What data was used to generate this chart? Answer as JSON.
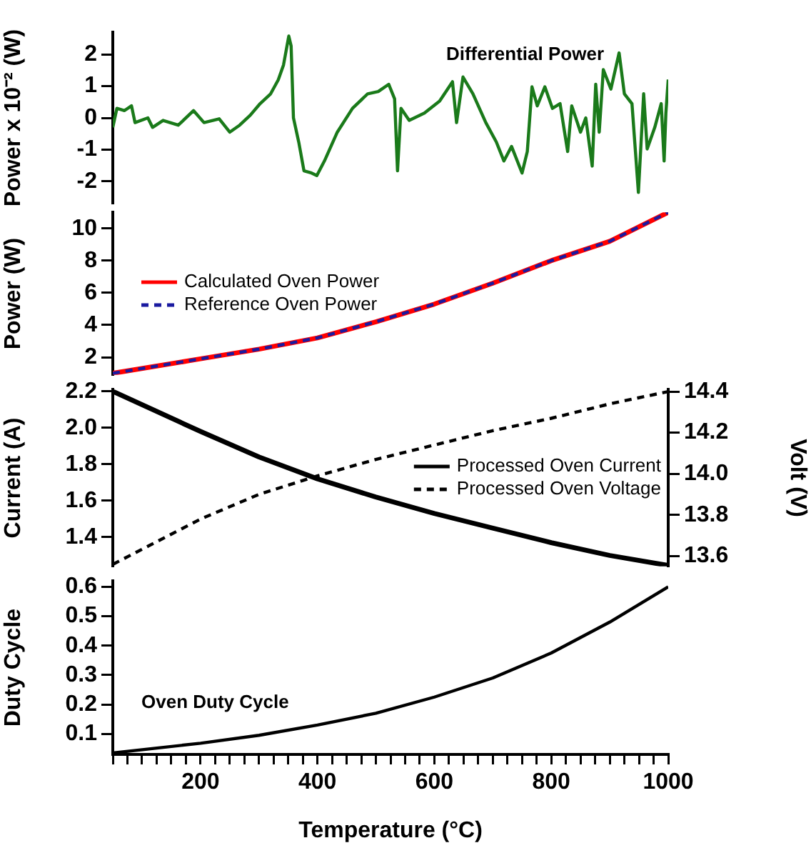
{
  "chart_data": [
    {
      "type": "line",
      "ylabel": "Power x 10⁻² (W)",
      "xlim": [
        50,
        1000
      ],
      "ylim": [
        -2.7,
        2.7
      ],
      "yticks": [
        -2,
        -1,
        0,
        1,
        2
      ],
      "tick_labels": "y",
      "grid": false,
      "legend": "top right",
      "series": [
        {
          "name": "Differential Power",
          "color": "#1a7a1a",
          "x": [
            50,
            57,
            70,
            82,
            88,
            110,
            118,
            136,
            162,
            188,
            206,
            232,
            250,
            267,
            285,
            302,
            320,
            333,
            342,
            351,
            355,
            359,
            368,
            377,
            390,
            399,
            412,
            434,
            460,
            486,
            504,
            522,
            532,
            537,
            543,
            557,
            583,
            609,
            631,
            638,
            649,
            666,
            688,
            706,
            719,
            732,
            750,
            759,
            767,
            776,
            789,
            802,
            815,
            828,
            835,
            850,
            859,
            870,
            876,
            882,
            889,
            902,
            916,
            925,
            938,
            949,
            958,
            964,
            977,
            988,
            993,
            996,
            1000
          ],
          "values": [
            -0.3,
            0.3,
            0.23,
            0.38,
            -0.15,
            0,
            -0.3,
            -0.08,
            -0.23,
            0.23,
            -0.15,
            -0.03,
            -0.45,
            -0.23,
            0.08,
            0.45,
            0.76,
            1.2,
            1.67,
            2.58,
            2.27,
            0,
            -0.76,
            -1.67,
            -1.74,
            -1.82,
            -1.36,
            -0.45,
            0.3,
            0.76,
            0.83,
            1.06,
            0.6,
            -1.67,
            0.3,
            -0.08,
            0.15,
            0.53,
            1.14,
            -0.15,
            1.29,
            0.76,
            -0.15,
            -0.76,
            -1.36,
            -0.9,
            -1.74,
            -1.06,
            0.98,
            0.38,
            0.98,
            0.3,
            0.45,
            -1.06,
            0.38,
            -0.45,
            0,
            -1.52,
            1.06,
            -0.45,
            1.52,
            0.91,
            2.05,
            0.76,
            0.45,
            -2.35,
            0.76,
            -0.98,
            -0.3,
            0.45,
            -1.36,
            0.15,
            1.21
          ]
        }
      ]
    },
    {
      "type": "line",
      "ylabel": "Power (W)",
      "x": [
        50,
        200,
        300,
        400,
        500,
        600,
        700,
        800,
        900,
        1000
      ],
      "xlim": [
        50,
        1000
      ],
      "ylim": [
        0.9,
        11
      ],
      "yticks": [
        2,
        4,
        6,
        8,
        10
      ],
      "tick_labels": "y",
      "grid": false,
      "legend": "left",
      "series": [
        {
          "name": "Calculated Oven Power",
          "color": "#ff0000",
          "line_style": "solid",
          "values": [
            1.0,
            1.9,
            2.5,
            3.2,
            4.2,
            5.3,
            6.6,
            8.0,
            9.2,
            11.0
          ]
        },
        {
          "name": "Reference Oven Power",
          "color": "#1a1aa0",
          "line_style": "dashed",
          "values": [
            1.0,
            1.9,
            2.5,
            3.2,
            4.2,
            5.3,
            6.6,
            8.0,
            9.2,
            11.0
          ]
        }
      ]
    },
    {
      "type": "line",
      "ylabel": "Current (A)",
      "y2label": "Volt (V)",
      "x": [
        50,
        200,
        300,
        400,
        500,
        600,
        700,
        800,
        900,
        1000
      ],
      "xlim": [
        50,
        1000
      ],
      "ylim": [
        1.24,
        2.21
      ],
      "yticks": [
        1.4,
        1.6,
        1.8,
        {
          "value": 2,
          "label": "2.0"
        },
        2.2
      ],
      "y2lim": [
        13.55,
        14.41
      ],
      "y2ticks": [
        13.6,
        13.8,
        {
          "value": 14,
          "label": "14.0"
        },
        14.2,
        14.4
      ],
      "tick_labels": "y",
      "grid": false,
      "legend": "right",
      "series": [
        {
          "name": "Processed Oven Current",
          "color": "#000000",
          "line_style": "solid",
          "values": [
            2.2,
            1.98,
            1.84,
            1.72,
            1.62,
            1.53,
            1.45,
            1.37,
            1.3,
            1.245
          ]
        },
        {
          "name": "Processed Oven Voltage",
          "color": "#000000",
          "line_style": "dashed",
          "axis": "y2",
          "values": [
            13.56,
            13.78,
            13.9,
            13.99,
            14.07,
            14.14,
            14.21,
            14.27,
            14.34,
            14.4
          ]
        }
      ]
    },
    {
      "type": "line",
      "ylabel": "Duty Cycle",
      "xlabel": "Temperature (°C)",
      "x": [
        50,
        200,
        300,
        400,
        500,
        600,
        700,
        800,
        900,
        1000
      ],
      "xlim": [
        50,
        1000
      ],
      "ylim": [
        0.03,
        0.62
      ],
      "yticks": [
        0.1,
        0.2,
        0.3,
        0.4,
        0.5,
        0.6
      ],
      "xticks": [
        {
          "value": 50,
          "label": null
        },
        {
          "value": 75,
          "label": null
        },
        {
          "value": 100,
          "label": null
        },
        {
          "value": 125,
          "label": null
        },
        {
          "value": 150,
          "label": null
        },
        {
          "value": 175,
          "label": null
        },
        200,
        {
          "value": 225,
          "label": null
        },
        {
          "value": 250,
          "label": null
        },
        {
          "value": 275,
          "label": null
        },
        {
          "value": 300,
          "label": null
        },
        {
          "value": 325,
          "label": null
        },
        {
          "value": 350,
          "label": null
        },
        {
          "value": 375,
          "label": null
        },
        400,
        {
          "value": 425,
          "label": null
        },
        {
          "value": 450,
          "label": null
        },
        {
          "value": 475,
          "label": null
        },
        {
          "value": 500,
          "label": null
        },
        {
          "value": 525,
          "label": null
        },
        {
          "value": 550,
          "label": null
        },
        {
          "value": 575,
          "label": null
        },
        600,
        {
          "value": 625,
          "label": null
        },
        {
          "value": 650,
          "label": null
        },
        {
          "value": 675,
          "label": null
        },
        {
          "value": 700,
          "label": null
        },
        {
          "value": 725,
          "label": null
        },
        {
          "value": 750,
          "label": null
        },
        {
          "value": 775,
          "label": null
        },
        800,
        {
          "value": 825,
          "label": null
        },
        {
          "value": 850,
          "label": null
        },
        {
          "value": 875,
          "label": null
        },
        {
          "value": 900,
          "label": null
        },
        {
          "value": 925,
          "label": null
        },
        {
          "value": 950,
          "label": null
        },
        {
          "value": 975,
          "label": null
        },
        1000
      ],
      "grid": false,
      "legend": "bottom left",
      "series": [
        {
          "name": "Oven Duty Cycle",
          "color": "#000000",
          "line_style": "solid",
          "values": [
            0.035,
            0.068,
            0.095,
            0.13,
            0.17,
            0.225,
            0.29,
            0.375,
            0.48,
            0.6
          ]
        }
      ]
    }
  ]
}
